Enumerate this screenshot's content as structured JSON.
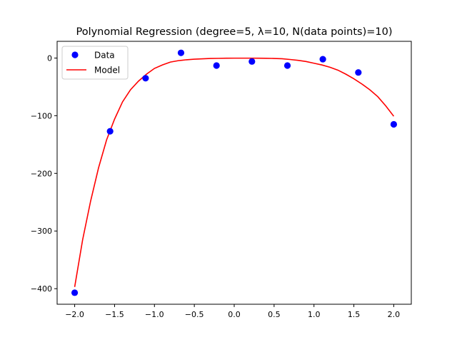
{
  "chart_data": {
    "type": "scatter",
    "title": "Polynomial Regression (degree=5, λ=10, N(data points)=10)",
    "xlabel": "",
    "ylabel": "",
    "xlim": [
      -2.22,
      2.22
    ],
    "ylim": [
      -427,
      29
    ],
    "grid": false,
    "legend_position": "top-left",
    "x_ticks": [
      -2.0,
      -1.5,
      -1.0,
      -0.5,
      0.0,
      0.5,
      1.0,
      1.5,
      2.0
    ],
    "x_tick_labels": [
      "−2.0",
      "−1.5",
      "−1.0",
      "−0.5",
      "0.0",
      "0.5",
      "1.0",
      "1.5",
      "2.0"
    ],
    "y_ticks": [
      0,
      -100,
      -200,
      -300,
      -400
    ],
    "y_tick_labels": [
      "0",
      "−100",
      "−200",
      "−300",
      "−400"
    ],
    "series": [
      {
        "name": "Data",
        "kind": "scatter",
        "color": "#0000ff",
        "points": [
          [
            -2.0,
            -407
          ],
          [
            -1.556,
            -127
          ],
          [
            -1.111,
            -35
          ],
          [
            -0.667,
            9
          ],
          [
            -0.222,
            -13
          ],
          [
            0.222,
            -6
          ],
          [
            0.667,
            -13
          ],
          [
            1.111,
            -2
          ],
          [
            1.556,
            -25
          ],
          [
            2.0,
            -115
          ]
        ]
      },
      {
        "name": "Model",
        "kind": "line",
        "color": "#ff0000",
        "points": [
          [
            -2.0,
            -397
          ],
          [
            -1.9,
            -315
          ],
          [
            -1.8,
            -248
          ],
          [
            -1.7,
            -190
          ],
          [
            -1.6,
            -142
          ],
          [
            -1.5,
            -106
          ],
          [
            -1.4,
            -76
          ],
          [
            -1.3,
            -55
          ],
          [
            -1.2,
            -40
          ],
          [
            -1.1,
            -28
          ],
          [
            -1.0,
            -18
          ],
          [
            -0.9,
            -12
          ],
          [
            -0.8,
            -7
          ],
          [
            -0.7,
            -4.5
          ],
          [
            -0.6,
            -3
          ],
          [
            -0.5,
            -2
          ],
          [
            -0.4,
            -1.3
          ],
          [
            -0.3,
            -0.8
          ],
          [
            -0.2,
            -0.5
          ],
          [
            -0.1,
            -0.3
          ],
          [
            0.0,
            -0.2
          ],
          [
            0.1,
            -0.2
          ],
          [
            0.2,
            -0.2
          ],
          [
            0.3,
            -0.3
          ],
          [
            0.4,
            -0.4
          ],
          [
            0.5,
            -0.7
          ],
          [
            0.6,
            -1.2
          ],
          [
            0.7,
            -2.5
          ],
          [
            0.8,
            -4
          ],
          [
            0.9,
            -6
          ],
          [
            1.0,
            -9
          ],
          [
            1.1,
            -12
          ],
          [
            1.2,
            -16
          ],
          [
            1.3,
            -21
          ],
          [
            1.4,
            -28
          ],
          [
            1.5,
            -36
          ],
          [
            1.6,
            -45
          ],
          [
            1.7,
            -55
          ],
          [
            1.8,
            -67
          ],
          [
            1.9,
            -83
          ],
          [
            2.0,
            -101
          ]
        ]
      }
    ]
  }
}
